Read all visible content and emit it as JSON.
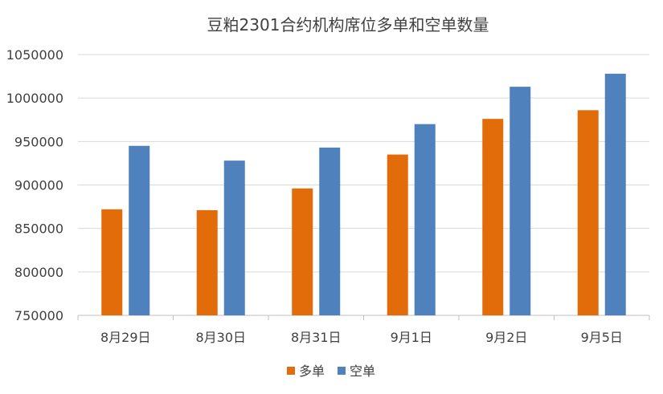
{
  "chart_data": {
    "type": "bar",
    "title": "豆粕2301合约机构席位多单和空单数量",
    "categories": [
      "8月29日",
      "8月30日",
      "8月31日",
      "9月1日",
      "9月2日",
      "9月5日"
    ],
    "series": [
      {
        "name": "多单",
        "color": "#E36C0A",
        "values": [
          872000,
          871000,
          896000,
          935000,
          976000,
          986000
        ]
      },
      {
        "name": "空单",
        "color": "#4F81BD",
        "values": [
          945000,
          928000,
          943000,
          970000,
          1013000,
          1028000
        ]
      }
    ],
    "ylim": [
      750000,
      1050000
    ],
    "yticks": [
      "750000",
      "800000",
      "850000",
      "900000",
      "950000",
      "1000000",
      "1050000"
    ],
    "grid": true,
    "legend_position": "bottom"
  }
}
